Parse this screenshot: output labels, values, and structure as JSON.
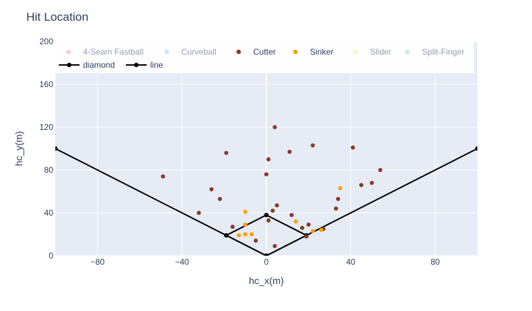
{
  "chart_data": {
    "type": "scatter",
    "title": "Hit Location",
    "xlabel": "hc_x(m)",
    "ylabel": "hc_y(m)",
    "xlim": [
      -100,
      100
    ],
    "ylim": [
      0,
      200
    ],
    "x_ticks": [
      -80,
      -40,
      0,
      40,
      80
    ],
    "y_ticks": [
      0,
      40,
      80,
      120,
      160,
      200
    ],
    "grid": true,
    "legend_position": "top",
    "legend": [
      {
        "name": "4-Seam Fastball",
        "color": "#e8a0ae",
        "active": false
      },
      {
        "name": "Curveball",
        "color": "#7fd6ef",
        "active": false
      },
      {
        "name": "Cutter",
        "color": "#8b3a24",
        "active": true
      },
      {
        "name": "Sinker",
        "color": "#ff9f00",
        "active": true
      },
      {
        "name": "Slider",
        "color": "#f6ea8c",
        "active": false
      },
      {
        "name": "Split-Finger",
        "color": "#8fd6d6",
        "active": false
      }
    ],
    "line_legend": [
      {
        "name": "diamond",
        "color": "#000000"
      },
      {
        "name": "line",
        "color": "#000000"
      }
    ],
    "series": [
      {
        "name": "Cutter",
        "color": "#8b3a24",
        "points": [
          [
            4,
            120
          ],
          [
            -19,
            96
          ],
          [
            11,
            97
          ],
          [
            22,
            103
          ],
          [
            41,
            101
          ],
          [
            0,
            76
          ],
          [
            1,
            90
          ],
          [
            -49,
            74
          ],
          [
            -26,
            62
          ],
          [
            -22,
            53
          ],
          [
            -32,
            40
          ],
          [
            5,
            47
          ],
          [
            3,
            42
          ],
          [
            12,
            38
          ],
          [
            34,
            53
          ],
          [
            33,
            44
          ],
          [
            54,
            80
          ],
          [
            50,
            68
          ],
          [
            45,
            66
          ],
          [
            1,
            33
          ],
          [
            -16,
            27
          ],
          [
            20,
            29
          ],
          [
            17,
            26
          ],
          [
            19,
            18
          ],
          [
            27,
            25
          ],
          [
            -5,
            14
          ],
          [
            4,
            9
          ]
        ]
      },
      {
        "name": "Sinker",
        "color": "#ff9f00",
        "points": [
          [
            -10,
            41
          ],
          [
            -10,
            29
          ],
          [
            -10,
            20
          ],
          [
            -7,
            20
          ],
          [
            -13,
            19
          ],
          [
            14,
            32
          ],
          [
            22,
            23
          ],
          [
            26,
            24
          ],
          [
            35,
            63
          ]
        ]
      }
    ],
    "lines": [
      {
        "name": "diamond",
        "color": "#000000",
        "points": [
          [
            0,
            0
          ],
          [
            -19,
            19
          ],
          [
            0,
            38
          ],
          [
            19,
            19
          ],
          [
            0,
            0
          ]
        ]
      },
      {
        "name": "line",
        "color": "#000000",
        "points": [
          [
            -100,
            100
          ],
          [
            0,
            0
          ],
          [
            100,
            100
          ]
        ]
      }
    ]
  }
}
